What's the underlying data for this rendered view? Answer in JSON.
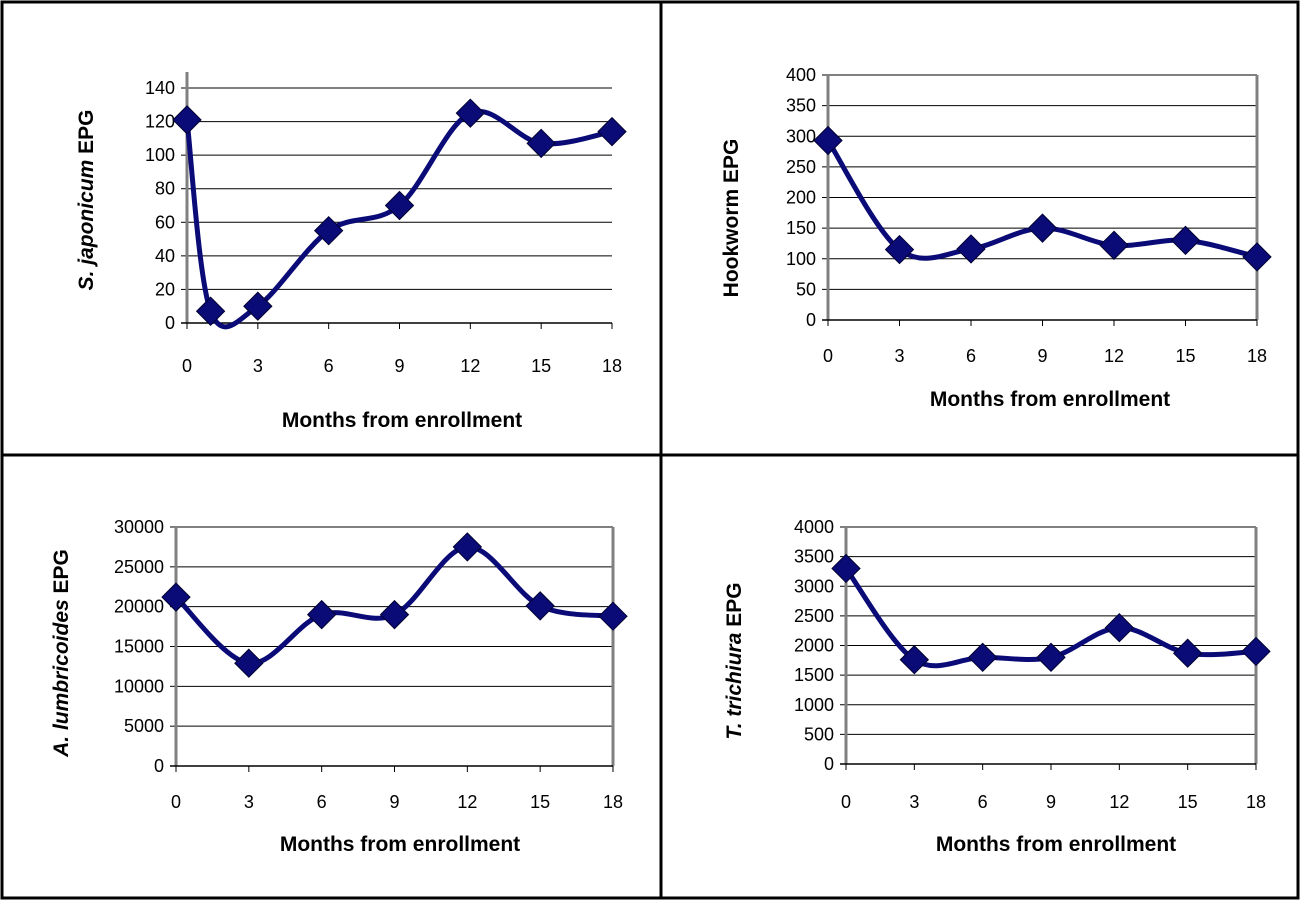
{
  "chart_data": [
    {
      "type": "line",
      "ylabel": {
        "italic": "S. japonicum",
        "rest": " EPG"
      },
      "xlabel": "Months from enrollment",
      "x_ticks": [
        "0",
        "3",
        "6",
        "9",
        "12",
        "15",
        "18"
      ],
      "xlim": [
        0,
        18
      ],
      "ylim": [
        0,
        140
      ],
      "y_ticks": [
        "0",
        "20",
        "40",
        "60",
        "80",
        "100",
        "120",
        "140"
      ],
      "grid": true,
      "frame": false,
      "series": [
        {
          "x": [
            0,
            1,
            3,
            6,
            9,
            12,
            15,
            18
          ],
          "values": [
            121,
            7,
            10,
            55,
            70,
            125,
            107,
            114
          ]
        }
      ],
      "colors": {
        "line": "#0b0b78",
        "marker": "#0b0b78"
      }
    },
    {
      "type": "line",
      "ylabel": {
        "italic": "",
        "rest": "Hookworm EPG"
      },
      "xlabel": "Months from enrollment",
      "x_ticks": [
        "0",
        "3",
        "6",
        "9",
        "12",
        "15",
        "18"
      ],
      "xlim": [
        0,
        18
      ],
      "ylim": [
        0,
        400
      ],
      "y_ticks": [
        "0",
        "50",
        "100",
        "150",
        "200",
        "250",
        "300",
        "350",
        "400"
      ],
      "grid": true,
      "frame": true,
      "series": [
        {
          "x": [
            0,
            3,
            6,
            9,
            12,
            15,
            18
          ],
          "values": [
            293,
            115,
            116,
            150,
            122,
            130,
            103
          ]
        }
      ],
      "colors": {
        "line": "#0b0b78",
        "marker": "#0b0b78"
      }
    },
    {
      "type": "line",
      "ylabel": {
        "italic": "A. lumbricoides",
        "rest": " EPG"
      },
      "xlabel": "Months from enrollment",
      "x_ticks": [
        "0",
        "3",
        "6",
        "9",
        "12",
        "15",
        "18"
      ],
      "xlim": [
        0,
        18
      ],
      "ylim": [
        0,
        30000
      ],
      "y_ticks": [
        "0",
        "5000",
        "10000",
        "15000",
        "20000",
        "25000",
        "30000"
      ],
      "grid": true,
      "frame": true,
      "series": [
        {
          "x": [
            0,
            3,
            6,
            9,
            12,
            15,
            18
          ],
          "values": [
            21200,
            12900,
            19000,
            19000,
            27500,
            20100,
            18800
          ]
        }
      ],
      "colors": {
        "line": "#0b0b78",
        "marker": "#0b0b78"
      }
    },
    {
      "type": "line",
      "ylabel": {
        "italic": "T. trichiura",
        "rest": " EPG"
      },
      "xlabel": "Months from enrollment",
      "x_ticks": [
        "0",
        "3",
        "6",
        "9",
        "12",
        "15",
        "18"
      ],
      "xlim": [
        0,
        18
      ],
      "ylim": [
        0,
        4000
      ],
      "y_ticks": [
        "0",
        "500",
        "1000",
        "1500",
        "2000",
        "2500",
        "3000",
        "3500",
        "4000"
      ],
      "grid": true,
      "frame": true,
      "series": [
        {
          "x": [
            0,
            3,
            6,
            9,
            12,
            15,
            18
          ],
          "values": [
            3300,
            1760,
            1800,
            1800,
            2300,
            1870,
            1900
          ]
        }
      ],
      "colors": {
        "line": "#0b0b78",
        "marker": "#0b0b78"
      }
    }
  ]
}
